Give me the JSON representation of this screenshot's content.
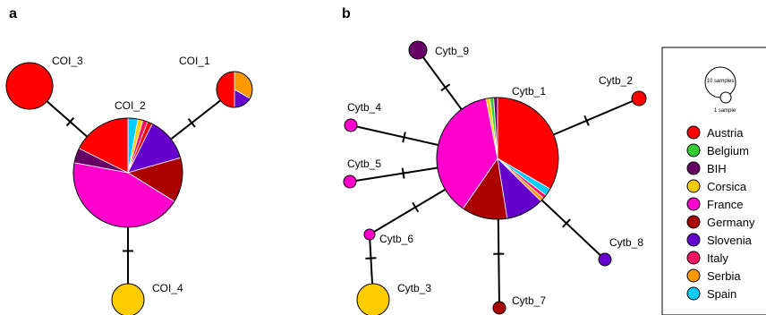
{
  "panels": [
    {
      "id": "a",
      "label": "a"
    },
    {
      "id": "b",
      "label": "b"
    }
  ],
  "colors": {
    "Austria": "#ff0000",
    "Belgium": "#33cc33",
    "BIH": "#660066",
    "Corsica": "#ffcc00",
    "France": "#ff00cc",
    "Germany": "#aa0000",
    "Slovenia": "#6600cc",
    "Italy": "#ff1166",
    "Serbia": "#ff9900",
    "Spain": "#00ccff"
  },
  "legend": {
    "size_labels": [
      "10 samples",
      "1 sample"
    ],
    "items": [
      "Austria",
      "Belgium",
      "BIH",
      "Corsica",
      "France",
      "Germany",
      "Slovenia",
      "Italy",
      "Serbia",
      "Spain"
    ]
  },
  "haplotypes_a": [
    {
      "name": "COI_1",
      "slices": [
        [
          "Serbia",
          2
        ],
        [
          "Slovenia",
          1
        ],
        [
          "Austria",
          3
        ]
      ]
    },
    {
      "name": "COI_2",
      "slices": [
        [
          "Spain",
          2
        ],
        [
          "Corsica",
          1
        ],
        [
          "Italy",
          1
        ],
        [
          "Austria",
          1
        ],
        [
          "Slovenia",
          9
        ],
        [
          "Germany",
          9
        ],
        [
          "France",
          30
        ],
        [
          "BIH",
          3
        ],
        [
          "Austria",
          12
        ]
      ]
    },
    {
      "name": "COI_3",
      "slices": [
        [
          "Austria",
          1
        ]
      ]
    },
    {
      "name": "COI_4",
      "slices": [
        [
          "Corsica",
          1
        ]
      ]
    }
  ],
  "haplotypes_b": [
    {
      "name": "Cytb_1",
      "slices": [
        [
          "Austria",
          33
        ],
        [
          "Spain",
          2
        ],
        [
          "Italy",
          1
        ],
        [
          "Serbia",
          1
        ],
        [
          "Slovenia",
          10
        ],
        [
          "Germany",
          12
        ],
        [
          "France",
          37
        ],
        [
          "Corsica",
          1
        ],
        [
          "Belgium",
          1
        ],
        [
          "BIH",
          1
        ]
      ]
    },
    {
      "name": "Cytb_2",
      "slices": [
        [
          "Austria",
          1
        ]
      ]
    },
    {
      "name": "Cytb_3",
      "slices": [
        [
          "Corsica",
          1
        ]
      ]
    },
    {
      "name": "Cytb_4",
      "slices": [
        [
          "France",
          1
        ]
      ]
    },
    {
      "name": "Cytb_5",
      "slices": [
        [
          "France",
          1
        ]
      ]
    },
    {
      "name": "Cytb_6",
      "slices": [
        [
          "France",
          1
        ]
      ]
    },
    {
      "name": "Cytb_7",
      "slices": [
        [
          "Germany",
          1
        ]
      ]
    },
    {
      "name": "Cytb_8",
      "slices": [
        [
          "Slovenia",
          1
        ]
      ]
    },
    {
      "name": "Cytb_9",
      "slices": [
        [
          "BIH",
          1
        ]
      ]
    }
  ],
  "edges_a": [
    [
      "COI_2",
      "COI_3"
    ],
    [
      "COI_2",
      "COI_1"
    ],
    [
      "COI_2",
      "COI_4"
    ]
  ],
  "edges_b": [
    [
      "Cytb_1",
      "Cytb_9"
    ],
    [
      "Cytb_1",
      "Cytb_2"
    ],
    [
      "Cytb_1",
      "Cytb_4"
    ],
    [
      "Cytb_1",
      "Cytb_5"
    ],
    [
      "Cytb_1",
      "Cytb_6"
    ],
    [
      "Cytb_6",
      "Cytb_3"
    ],
    [
      "Cytb_1",
      "Cytb_7"
    ],
    [
      "Cytb_1",
      "Cytb_8"
    ]
  ]
}
